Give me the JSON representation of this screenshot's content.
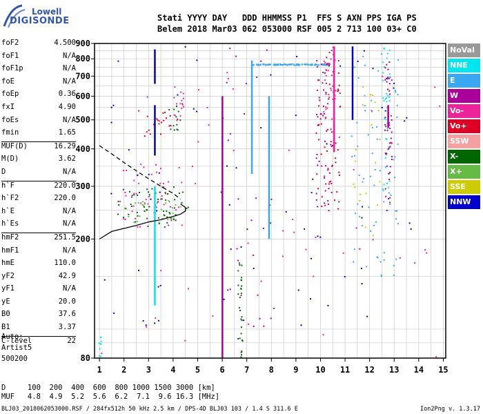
{
  "logo": {
    "line1": "Lowell",
    "line2": "DIGISONDE"
  },
  "header": {
    "line1": "Stati YYYY DAY   DDD HHMMSS P1  FFS S AXN PPS IGA PS",
    "line2": "Belem 2018 Mar03 062 053000 RSF 005 2 713 100 03+ C0"
  },
  "params": [
    {
      "k": "foF2",
      "v": "4.500"
    },
    {
      "k": "foF1",
      "v": "N/A"
    },
    {
      "k": "foF1p",
      "v": "N/A"
    },
    {
      "k": "foE",
      "v": "N/A"
    },
    {
      "k": "foEp",
      "v": "0.36"
    },
    {
      "k": "fxI",
      "v": "4.90"
    },
    {
      "k": "foEs",
      "v": "N/A"
    },
    {
      "k": "fmin",
      "v": "1.65"
    },
    {
      "k": "MUF(D)",
      "v": "16.29",
      "sep": true
    },
    {
      "k": "M(D)",
      "v": "3.62"
    },
    {
      "k": "D",
      "v": "N/A"
    },
    {
      "k": "h`F",
      "v": "220.0",
      "sep": true
    },
    {
      "k": "h`F2",
      "v": "220.0"
    },
    {
      "k": "h`E",
      "v": "N/A"
    },
    {
      "k": "h`Es",
      "v": "N/A"
    },
    {
      "k": "hmF2",
      "v": "251.5",
      "sep": true
    },
    {
      "k": "hmF1",
      "v": "N/A"
    },
    {
      "k": "hmE",
      "v": "110.0"
    },
    {
      "k": "yF2",
      "v": "42.9"
    },
    {
      "k": "yF1",
      "v": "N/A"
    },
    {
      "k": "yE",
      "v": "20.0"
    },
    {
      "k": "B0",
      "v": "37.6"
    },
    {
      "k": "B1",
      "v": "3.37"
    },
    {
      "k": "C-level",
      "v": "22",
      "sep": true
    }
  ],
  "artist": {
    "l1": "Auto:",
    "l2": "Artist5",
    "l3": "500200"
  },
  "bottom": {
    "dline": "D     100  200  400  600  800 1000 1500 3000 [km]",
    "mufline": "MUF   4.8  4.9  5.2  5.6  6.2  7.1  9.6 16.3 [MHz]"
  },
  "footer": {
    "left": "BLJ03_2018062053000.RSF / 284fx512h 50 kHz 2.5 km / DPS-4D BLJ03 103 / 1.4 S 311.6 E",
    "right": "Ion2Png v. 1.3.17"
  },
  "legend": [
    {
      "label": "NoVal",
      "color": "#999999"
    },
    {
      "label": "NNE",
      "color": "#00e5ee"
    },
    {
      "label": "E",
      "color": "#3aa8f0"
    },
    {
      "label": "W",
      "color": "#aa0099"
    },
    {
      "label": "Vo-",
      "color": "#ee2299"
    },
    {
      "label": "Vo+",
      "color": "#dd0022"
    },
    {
      "label": "SSW",
      "color": "#f5a0a0"
    },
    {
      "label": "X-",
      "color": "#006600"
    },
    {
      "label": "X+",
      "color": "#66bb44"
    },
    {
      "label": "SSE",
      "color": "#cccc00"
    },
    {
      "label": "NNW",
      "color": "#0000cc"
    }
  ],
  "chart_data": {
    "type": "scatter",
    "xlim": [
      0.8,
      15.1
    ],
    "ylim": [
      80,
      900
    ],
    "xticks": [
      "1",
      "2",
      "3",
      "4",
      "5",
      "6",
      "7",
      "8",
      "9",
      "10",
      "11",
      "12",
      "13",
      "14",
      "15"
    ],
    "yticks": [
      "80",
      "200",
      "300",
      "400",
      "500",
      "600",
      "700",
      "800",
      "900"
    ],
    "yscale": "log",
    "grid": true,
    "traces": [
      {
        "name": "",
        "color": "#000000",
        "dash": false,
        "x": [
          1.0,
          1.5,
          2.0,
          2.5,
          3.0,
          3.5,
          4.0,
          4.3,
          4.5,
          4.5,
          4.3
        ],
        "y": [
          200,
          212,
          217,
          222,
          228,
          232,
          238,
          242,
          248,
          255,
          262
        ]
      },
      {
        "name": "",
        "color": "#000000",
        "dash": true,
        "x": [
          1.0,
          1.5,
          2.0,
          2.5,
          3.0,
          3.5,
          4.0,
          4.3
        ],
        "y": [
          410,
          385,
          360,
          338,
          318,
          300,
          284,
          272
        ]
      }
    ],
    "clusters": [
      {
        "color": "#006600",
        "x": [
          1.7,
          4.6
        ],
        "y": [
          220,
          300
        ],
        "n": 60
      },
      {
        "color": "#ee2299",
        "x": [
          1.7,
          4.4
        ],
        "y": [
          220,
          360
        ],
        "n": 50
      },
      {
        "color": "#66bb44",
        "x": [
          2.0,
          4.5
        ],
        "y": [
          225,
          270
        ],
        "n": 25
      },
      {
        "color": "#dd0022",
        "x": [
          2.5,
          4.2
        ],
        "y": [
          440,
          540
        ],
        "n": 20
      },
      {
        "color": "#ee2299",
        "x": [
          4.0,
          4.4
        ],
        "y": [
          500,
          650
        ],
        "n": 15
      },
      {
        "color": "#006600",
        "x": [
          3.8,
          4.3
        ],
        "y": [
          460,
          560
        ],
        "n": 12
      },
      {
        "color": "#3aa8f0",
        "x": [
          7.2,
          10.4
        ],
        "y": [
          765,
          772
        ],
        "n": 120
      },
      {
        "color": "#dd0022",
        "x": [
          9.8,
          10.8
        ],
        "y": [
          250,
          880
        ],
        "n": 60
      },
      {
        "color": "#aa0099",
        "x": [
          9.8,
          10.5
        ],
        "y": [
          250,
          880
        ],
        "n": 50
      },
      {
        "color": "#ee2299",
        "x": [
          10.1,
          10.6
        ],
        "y": [
          500,
          900
        ],
        "n": 30
      },
      {
        "color": "#00e5ee",
        "x": [
          12.5,
          12.8
        ],
        "y": [
          280,
          900
        ],
        "n": 40
      },
      {
        "color": "#aa0099",
        "x": [
          12.6,
          12.9
        ],
        "y": [
          250,
          820
        ],
        "n": 50
      },
      {
        "color": "#3aa8f0",
        "x": [
          11.2,
          13.2
        ],
        "y": [
          150,
          880
        ],
        "n": 70
      },
      {
        "color": "#0000cc",
        "x": [
          1.0,
          13.8
        ],
        "y": [
          100,
          890
        ],
        "n": 70
      },
      {
        "color": "#006600",
        "x": [
          6.6,
          6.8
        ],
        "y": [
          80,
          180
        ],
        "n": 30
      },
      {
        "color": "#cccc00",
        "x": [
          11.3,
          12.4
        ],
        "y": [
          200,
          780
        ],
        "n": 20
      },
      {
        "color": "#ee2299",
        "x": [
          1.0,
          14.9
        ],
        "y": [
          80,
          880
        ],
        "n": 50
      },
      {
        "color": "#aa0099",
        "x": [
          5.9,
          8.2
        ],
        "y": [
          100,
          880
        ],
        "n": 30
      },
      {
        "color": "#00e5ee",
        "x": [
          0.95,
          1.05
        ],
        "y": [
          80,
          95
        ],
        "n": 10
      }
    ],
    "columns": [
      {
        "color": "#aa0099",
        "x": 6.0,
        "y": [
          80,
          600
        ]
      },
      {
        "color": "#0000cc",
        "x": 3.25,
        "y": [
          660,
          860
        ]
      },
      {
        "color": "#0000cc",
        "x": 3.25,
        "y": [
          380,
          560
        ]
      },
      {
        "color": "#00e5ee",
        "x": 3.25,
        "y": [
          120,
          300
        ]
      },
      {
        "color": "#3aa8f0",
        "x": 7.2,
        "y": [
          330,
          790
        ]
      },
      {
        "color": "#3aa8f0",
        "x": 7.9,
        "y": [
          200,
          600
        ]
      },
      {
        "color": "#0000cc",
        "x": 11.3,
        "y": [
          500,
          880
        ]
      },
      {
        "color": "#aa0099",
        "x": 12.75,
        "y": [
          470,
          560
        ]
      },
      {
        "color": "#ee2299",
        "x": 10.55,
        "y": [
          390,
          880
        ]
      }
    ]
  }
}
